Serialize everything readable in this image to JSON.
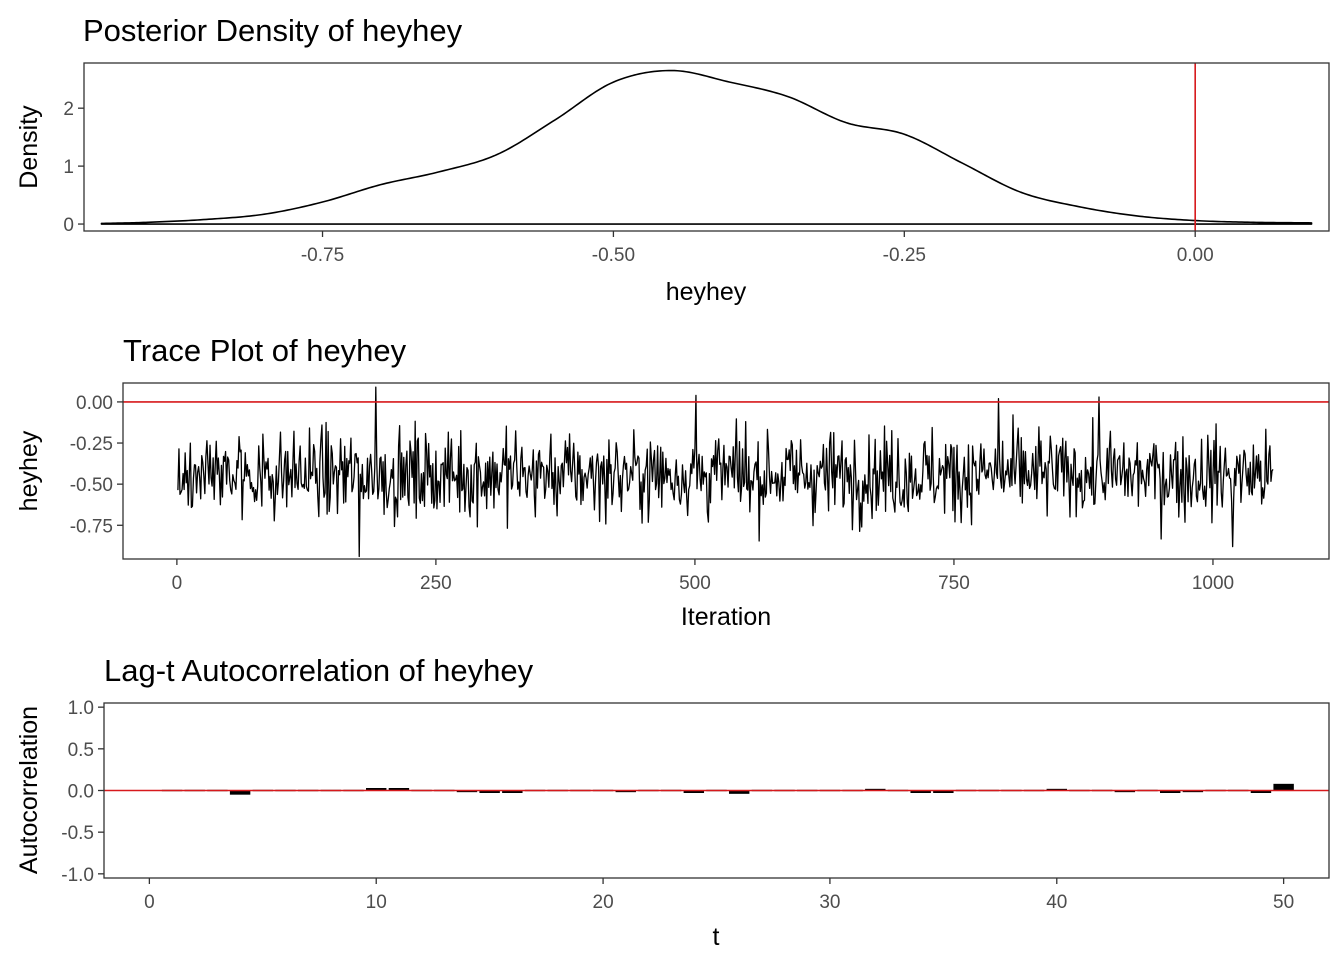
{
  "chart_data": [
    {
      "type": "area",
      "title": "Posterior Density of heyhey",
      "xlabel": "heyhey",
      "ylabel": "Density",
      "xlim": [
        -0.955,
        0.115
      ],
      "ylim": [
        -0.12,
        2.78
      ],
      "x_ticks": [
        -0.75,
        -0.5,
        -0.25,
        0.0
      ],
      "x_tick_labels": [
        "-0.75",
        "-0.50",
        "-0.25",
        "0.00"
      ],
      "y_ticks": [
        0,
        1,
        2
      ],
      "y_tick_labels": [
        "0",
        "1",
        "2"
      ],
      "reference_line": {
        "axis": "x",
        "value": 0.0,
        "color": "#d7191c"
      },
      "line_color": "#000000",
      "grid": false,
      "x": [
        -0.94,
        -0.9,
        -0.85,
        -0.8,
        -0.75,
        -0.7,
        -0.65,
        -0.6,
        -0.55,
        -0.5,
        -0.45,
        -0.4,
        -0.35,
        -0.3,
        -0.25,
        -0.2,
        -0.15,
        -0.1,
        -0.05,
        0.0,
        0.05,
        0.1
      ],
      "y": [
        0.01,
        0.03,
        0.08,
        0.17,
        0.38,
        0.68,
        0.9,
        1.2,
        1.8,
        2.45,
        2.65,
        2.45,
        2.2,
        1.75,
        1.55,
        1.05,
        0.55,
        0.3,
        0.14,
        0.06,
        0.03,
        0.02
      ]
    },
    {
      "type": "line",
      "title": "Trace Plot of heyhey",
      "xlabel": "Iteration",
      "ylabel": "heyhey",
      "xlim": [
        -52,
        1112
      ],
      "ylim": [
        -0.955,
        0.115
      ],
      "x_ticks": [
        0,
        250,
        500,
        750,
        1000
      ],
      "x_tick_labels": [
        "0",
        "250",
        "500",
        "750",
        "1000"
      ],
      "y_ticks": [
        0.0,
        -0.25,
        -0.5,
        -0.75
      ],
      "y_tick_labels": [
        "0.00",
        "-0.25",
        "-0.50",
        "-0.75"
      ],
      "reference_line": {
        "axis": "y",
        "value": 0.0,
        "color": "#d7191c"
      },
      "line_color": "#000000",
      "grid": false,
      "n_iterations": 1058,
      "mean": -0.44,
      "min": -0.94,
      "max": 0.09,
      "extremes": [
        {
          "x": 176,
          "y": -0.94
        },
        {
          "x": 192,
          "y": 0.09
        },
        {
          "x": 501,
          "y": 0.04
        },
        {
          "x": 793,
          "y": 0.02
        },
        {
          "x": 890,
          "y": 0.03
        },
        {
          "x": 1019,
          "y": -0.88
        },
        {
          "x": 1058,
          "y": -0.41
        }
      ]
    },
    {
      "type": "bar",
      "title": "Lag-t Autocorrelation of heyhey",
      "xlabel": "t",
      "ylabel": "Autocorrelation",
      "xlim": [
        -2.0,
        52.0
      ],
      "ylim": [
        -1.05,
        1.05
      ],
      "x_ticks": [
        0,
        10,
        20,
        30,
        40,
        50
      ],
      "x_tick_labels": [
        "0",
        "10",
        "20",
        "30",
        "40",
        "50"
      ],
      "y_ticks": [
        1.0,
        0.5,
        0.0,
        -0.5,
        -1.0
      ],
      "y_tick_labels": [
        "1.0",
        "0.5",
        "0.0",
        "-0.5",
        "-1.0"
      ],
      "reference_line": {
        "axis": "y",
        "value": 0.0,
        "color": "#d7191c"
      },
      "bar_color": "#000000",
      "grid": false,
      "categories": [
        1,
        2,
        3,
        4,
        5,
        6,
        7,
        8,
        9,
        10,
        11,
        12,
        13,
        14,
        15,
        16,
        17,
        18,
        19,
        20,
        21,
        22,
        23,
        24,
        25,
        26,
        27,
        28,
        29,
        30,
        31,
        32,
        33,
        34,
        35,
        36,
        37,
        38,
        39,
        40,
        41,
        42,
        43,
        44,
        45,
        46,
        47,
        48,
        49,
        50
      ],
      "values": [
        0.0,
        0.0,
        0.01,
        -0.05,
        0.0,
        0.0,
        -0.01,
        0.0,
        -0.01,
        0.03,
        0.03,
        0.0,
        0.0,
        -0.02,
        -0.03,
        -0.03,
        0.0,
        0.0,
        0.0,
        0.0,
        -0.02,
        0.0,
        -0.01,
        -0.03,
        0.0,
        -0.04,
        0.0,
        0.01,
        0.01,
        -0.01,
        0.0,
        0.02,
        0.0,
        -0.03,
        -0.03,
        0.01,
        -0.01,
        0.0,
        0.0,
        0.02,
        0.0,
        0.0,
        -0.02,
        -0.01,
        -0.03,
        -0.02,
        0.0,
        0.0,
        -0.03,
        0.08
      ]
    }
  ]
}
